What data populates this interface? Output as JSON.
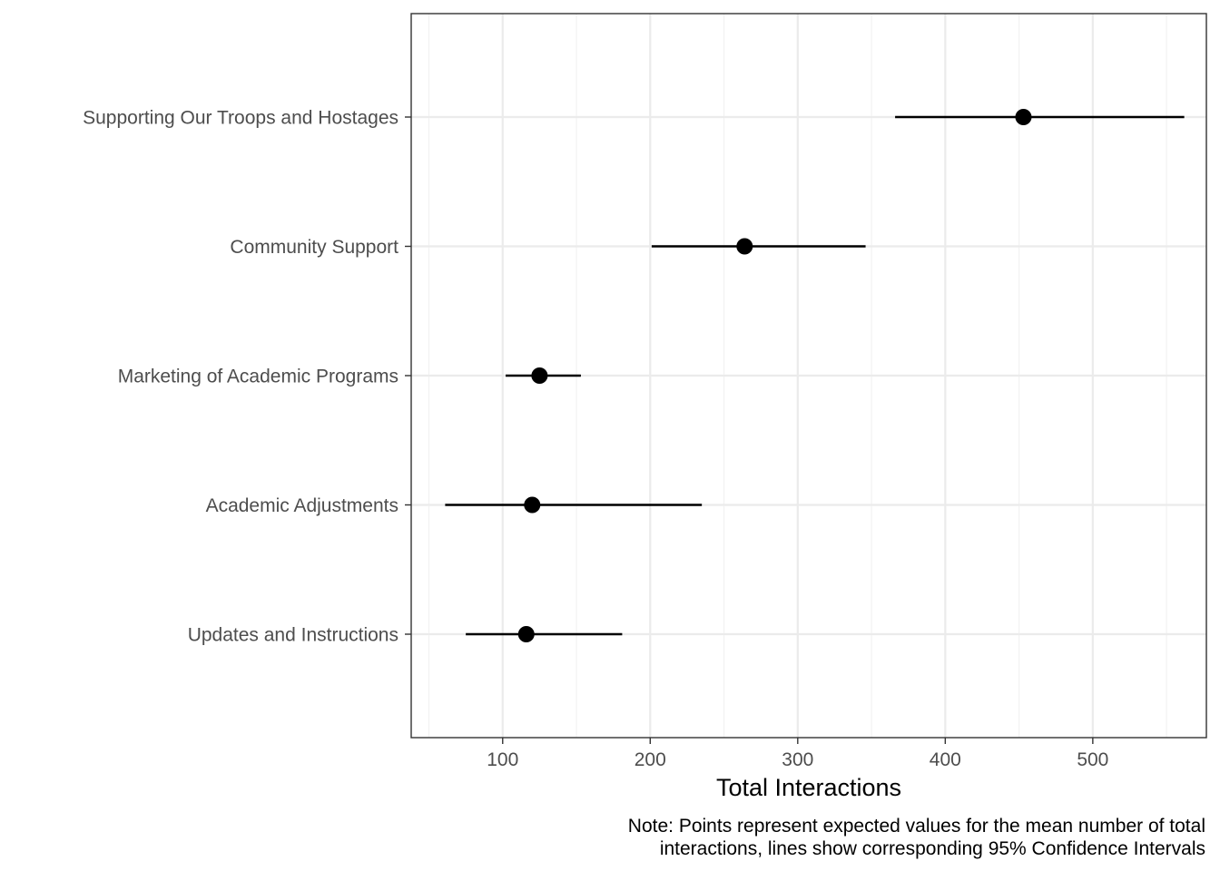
{
  "chart_data": {
    "type": "scatter",
    "subtype": "point-range",
    "orientation": "horizontal",
    "title": "",
    "xlabel": "Total Interactions",
    "ylabel": "",
    "caption_lines": [
      "Note: Points represent expected values for the mean number of total",
      "interactions, lines show corresponding 95% Confidence Intervals"
    ],
    "xlim": [
      38,
      577
    ],
    "xticks": [
      100,
      200,
      300,
      400,
      500
    ],
    "grid": true,
    "legend": "none",
    "categories": [
      "Updates and Instructions",
      "Academic Adjustments",
      "Marketing of Academic Programs",
      "Community Support",
      "Supporting Our Troops and Hostages"
    ],
    "series": [
      {
        "values": [
          116,
          120,
          125,
          264,
          453
        ],
        "lower": [
          75,
          61,
          102,
          201,
          366
        ],
        "upper": [
          181,
          235,
          153,
          346,
          562
        ]
      }
    ],
    "colors": {
      "point": "#000000",
      "line": "#000000",
      "grid_major": "#ebebeb",
      "grid_minor": "#f2f2f2",
      "panel_border": "#333333",
      "tick_text": "#4d4d4d"
    }
  }
}
